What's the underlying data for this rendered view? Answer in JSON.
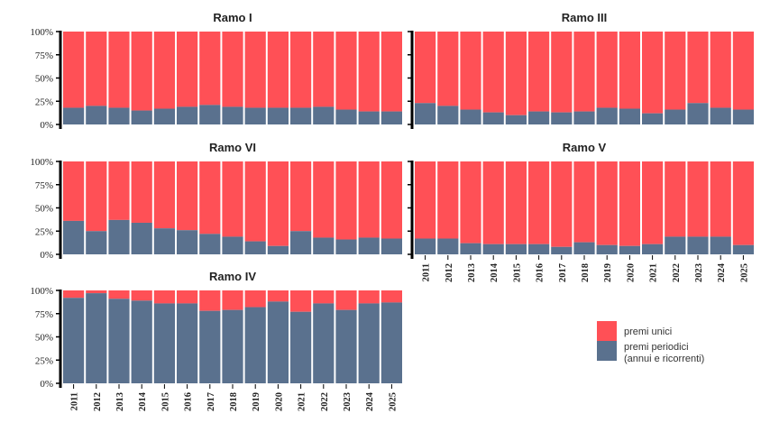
{
  "colors": {
    "unici": "#FF5056",
    "periodici": "#5A718E"
  },
  "legend": {
    "unici": "premi unici",
    "periodici_line1": "premi periodici",
    "periodici_line2": "(annui e ricorrenti)"
  },
  "chart_data": [
    {
      "type": "bar",
      "stacked": true,
      "title": "Ramo I",
      "categories": [
        "2011",
        "2012",
        "2013",
        "2014",
        "2015",
        "2016",
        "2017",
        "2018",
        "2019",
        "2020",
        "2021",
        "2022",
        "2023",
        "2024",
        "2025"
      ],
      "ylim": [
        0,
        100
      ],
      "yticks": [
        "0%",
        "25%",
        "50%",
        "75%",
        "100%"
      ],
      "series": [
        {
          "name": "premi periodici (annui e ricorrenti)",
          "values": [
            18,
            20,
            18,
            15,
            17,
            19,
            21,
            19,
            18,
            18,
            18,
            19,
            16,
            14,
            14
          ]
        },
        {
          "name": "premi unici",
          "values": [
            82,
            80,
            82,
            85,
            83,
            81,
            79,
            81,
            82,
            82,
            82,
            81,
            84,
            86,
            86
          ]
        }
      ]
    },
    {
      "type": "bar",
      "stacked": true,
      "title": "Ramo III",
      "categories": [
        "2011",
        "2012",
        "2013",
        "2014",
        "2015",
        "2016",
        "2017",
        "2018",
        "2019",
        "2020",
        "2021",
        "2022",
        "2023",
        "2024",
        "2025"
      ],
      "ylim": [
        0,
        100
      ],
      "yticks": [
        "0%",
        "25%",
        "50%",
        "75%",
        "100%"
      ],
      "series": [
        {
          "name": "premi periodici (annui e ricorrenti)",
          "values": [
            23,
            20,
            16,
            13,
            10,
            14,
            13,
            14,
            18,
            17,
            12,
            16,
            23,
            18,
            16
          ]
        },
        {
          "name": "premi unici",
          "values": [
            77,
            80,
            84,
            87,
            90,
            86,
            87,
            86,
            82,
            83,
            88,
            84,
            77,
            82,
            84
          ]
        }
      ]
    },
    {
      "type": "bar",
      "stacked": true,
      "title": "Ramo VI",
      "categories": [
        "2011",
        "2012",
        "2013",
        "2014",
        "2015",
        "2016",
        "2017",
        "2018",
        "2019",
        "2020",
        "2021",
        "2022",
        "2023",
        "2024",
        "2025"
      ],
      "ylim": [
        0,
        100
      ],
      "yticks": [
        "0%",
        "25%",
        "50%",
        "75%",
        "100%"
      ],
      "series": [
        {
          "name": "premi periodici (annui e ricorrenti)",
          "values": [
            36,
            25,
            37,
            34,
            28,
            26,
            22,
            19,
            14,
            9,
            25,
            18,
            16,
            18,
            17
          ]
        },
        {
          "name": "premi unici",
          "values": [
            64,
            75,
            63,
            66,
            72,
            74,
            78,
            81,
            86,
            91,
            75,
            82,
            84,
            82,
            83
          ]
        }
      ]
    },
    {
      "type": "bar",
      "stacked": true,
      "title": "Ramo V",
      "categories": [
        "2011",
        "2012",
        "2013",
        "2014",
        "2015",
        "2016",
        "2017",
        "2018",
        "2019",
        "2020",
        "2021",
        "2022",
        "2023",
        "2024",
        "2025"
      ],
      "ylim": [
        0,
        100
      ],
      "yticks": [
        "0%",
        "25%",
        "50%",
        "75%",
        "100%"
      ],
      "series": [
        {
          "name": "premi periodici (annui e ricorrenti)",
          "values": [
            17,
            17,
            12,
            11,
            11,
            11,
            8,
            13,
            10,
            9,
            11,
            19,
            19,
            19,
            10
          ]
        },
        {
          "name": "premi unici",
          "values": [
            83,
            83,
            88,
            89,
            89,
            89,
            92,
            87,
            90,
            91,
            89,
            81,
            81,
            81,
            90
          ]
        }
      ]
    },
    {
      "type": "bar",
      "stacked": true,
      "title": "Ramo IV",
      "categories": [
        "2011",
        "2012",
        "2013",
        "2014",
        "2015",
        "2016",
        "2017",
        "2018",
        "2019",
        "2020",
        "2021",
        "2022",
        "2023",
        "2024",
        "2025"
      ],
      "ylim": [
        0,
        100
      ],
      "yticks": [
        "0%",
        "25%",
        "50%",
        "75%",
        "100%"
      ],
      "series": [
        {
          "name": "premi periodici (annui e ricorrenti)",
          "values": [
            92,
            97,
            91,
            89,
            86,
            86,
            78,
            79,
            82,
            88,
            77,
            86,
            79,
            86,
            87
          ]
        },
        {
          "name": "premi unici",
          "values": [
            8,
            3,
            9,
            11,
            14,
            14,
            22,
            21,
            18,
            12,
            23,
            14,
            21,
            14,
            13
          ]
        }
      ]
    }
  ]
}
